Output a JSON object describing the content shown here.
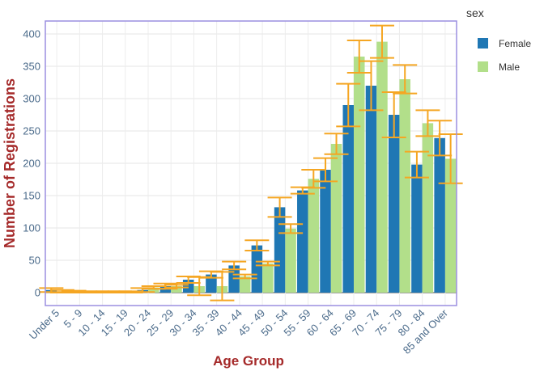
{
  "chart_data": {
    "type": "bar",
    "barmode": "group",
    "title": "",
    "xlabel": "Age Group",
    "ylabel": "Number of Registrations",
    "ylim": [
      -20,
      420
    ],
    "yticks": [
      0,
      50,
      100,
      150,
      200,
      250,
      300,
      350,
      400
    ],
    "grid": true,
    "legend_title": "sex",
    "legend_position": "top-right",
    "categories": [
      "Under 5",
      "5 - 9",
      "10 - 14",
      "15 - 19",
      "20 - 24",
      "25 - 29",
      "30 - 34",
      "35 - 39",
      "40 - 44",
      "45 - 49",
      "50 - 54",
      "55 - 59",
      "60 - 64",
      "65 - 69",
      "70 - 74",
      "75 - 79",
      "80 - 84",
      "85 and Over"
    ],
    "series": [
      {
        "name": "Female",
        "color": "#1f77b4",
        "values": [
          4,
          2,
          1,
          1,
          4,
          10,
          20,
          28,
          42,
          73,
          132,
          158,
          190,
          290,
          320,
          275,
          198,
          239
        ],
        "error": [
          3,
          1,
          1,
          1,
          3,
          4,
          5,
          5,
          6,
          8,
          15,
          5,
          18,
          33,
          38,
          35,
          20,
          27
        ]
      },
      {
        "name": "Male",
        "color": "#b2df8a",
        "values": [
          2,
          1,
          1,
          1,
          8,
          10,
          10,
          10,
          25,
          45,
          99,
          176,
          230,
          365,
          388,
          330,
          262,
          207
        ],
        "error": [
          2,
          1,
          1,
          1,
          2,
          2,
          14,
          22,
          3,
          3,
          7,
          14,
          16,
          25,
          25,
          22,
          20,
          38
        ]
      }
    ],
    "error_bar_color": "#f5a623"
  }
}
